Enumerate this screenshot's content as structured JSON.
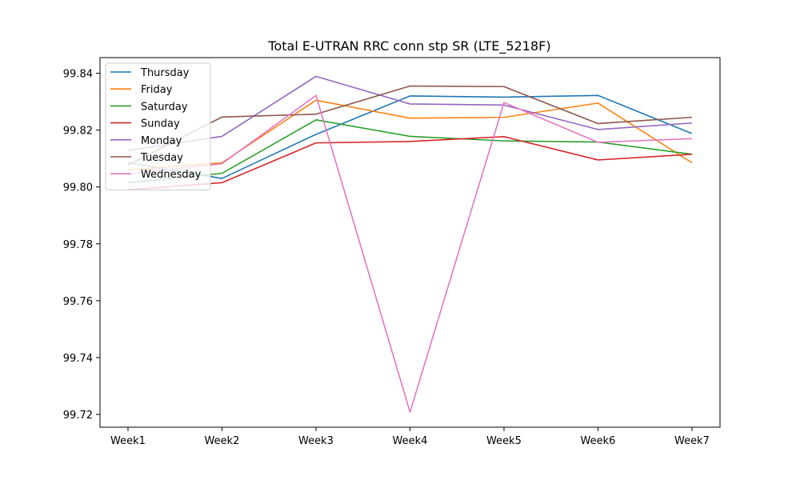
{
  "chart_data": {
    "type": "line",
    "title": "Total E-UTRAN RRC conn stp SR (LTE_5218F)",
    "xlabel": "",
    "ylabel": "",
    "categories": [
      "Week1",
      "Week2",
      "Week3",
      "Week4",
      "Week5",
      "Week6",
      "Week7"
    ],
    "ylim": [
      99.7155,
      99.8455
    ],
    "yticks": [
      "99.72",
      "99.74",
      "99.76",
      "99.78",
      "99.80",
      "99.82",
      "99.84"
    ],
    "grid": false,
    "legend_position": "top-left",
    "series": [
      {
        "name": "Thursday",
        "color": "#1f77b4",
        "values": [
          99.8085,
          99.803,
          99.8185,
          99.832,
          99.8316,
          99.8322,
          99.8188
        ]
      },
      {
        "name": "Friday",
        "color": "#ff7f0e",
        "values": [
          99.806,
          99.8085,
          99.8305,
          99.8242,
          99.8245,
          99.8295,
          99.8085
        ]
      },
      {
        "name": "Saturday",
        "color": "#2ca02c",
        "values": [
          99.8015,
          99.8048,
          99.8236,
          99.8178,
          99.8162,
          99.8158,
          99.8115
        ]
      },
      {
        "name": "Sunday",
        "color": "#d62728",
        "values": [
          99.799,
          99.8015,
          99.8155,
          99.816,
          99.8177,
          99.8095,
          99.8115
        ]
      },
      {
        "name": "Monday",
        "color": "#9467bd",
        "values": [
          99.8128,
          99.8178,
          99.8389,
          99.8292,
          99.8288,
          99.8202,
          99.8225
        ]
      },
      {
        "name": "Tuesday",
        "color": "#8c564b",
        "values": [
          99.8077,
          99.8246,
          99.8256,
          99.8355,
          99.8353,
          99.8223,
          99.8245
        ]
      },
      {
        "name": "Wednesday",
        "color": "#e377c2",
        "values": [
          99.8045,
          99.8082,
          99.8322,
          99.7208,
          99.8297,
          99.8157,
          99.817
        ]
      }
    ]
  }
}
